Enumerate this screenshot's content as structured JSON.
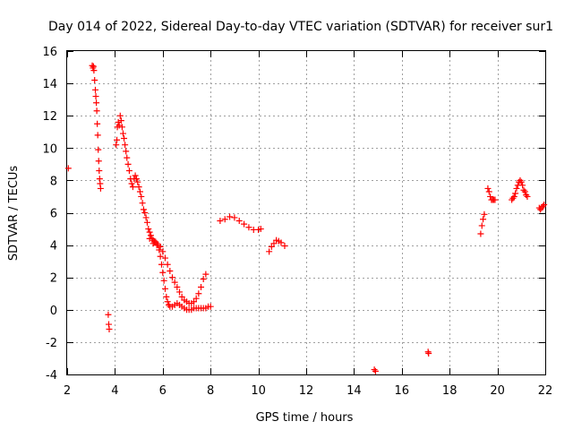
{
  "chart_data": {
    "type": "scatter",
    "title": "Day 014 of 2022, Sidereal Day-to-day VTEC variation (SDTVAR) for receiver sur1",
    "xlabel": "GPS time / hours",
    "ylabel": "SDTVAR / TECUs",
    "xlim": [
      2,
      22
    ],
    "ylim": [
      -4,
      16
    ],
    "xticks": [
      2,
      4,
      6,
      8,
      10,
      12,
      14,
      16,
      18,
      20,
      22
    ],
    "yticks": [
      -4,
      -2,
      0,
      2,
      4,
      6,
      8,
      10,
      12,
      14,
      16
    ],
    "grid": true,
    "marker": "+",
    "colors": {
      "series": "#ff0000",
      "grid": "#a0a0a0",
      "frame": "#000000"
    },
    "series": [
      {
        "name": "SDTVAR",
        "points": [
          [
            2.05,
            8.75
          ],
          [
            3.05,
            15.1
          ],
          [
            3.08,
            14.95
          ],
          [
            3.1,
            15.05
          ],
          [
            3.12,
            14.8
          ],
          [
            3.15,
            14.2
          ],
          [
            3.18,
            13.6
          ],
          [
            3.2,
            13.2
          ],
          [
            3.22,
            12.8
          ],
          [
            3.24,
            12.3
          ],
          [
            3.26,
            11.5
          ],
          [
            3.28,
            10.8
          ],
          [
            3.3,
            9.9
          ],
          [
            3.32,
            9.2
          ],
          [
            3.34,
            8.6
          ],
          [
            3.36,
            8.1
          ],
          [
            3.38,
            7.8
          ],
          [
            3.4,
            7.5
          ],
          [
            3.72,
            -0.3
          ],
          [
            3.74,
            -0.9
          ],
          [
            3.76,
            -1.2
          ],
          [
            4.05,
            10.2
          ],
          [
            4.08,
            10.5
          ],
          [
            4.1,
            11.3
          ],
          [
            4.14,
            11.6
          ],
          [
            4.18,
            11.4
          ],
          [
            4.22,
            12.0
          ],
          [
            4.26,
            11.7
          ],
          [
            4.3,
            11.3
          ],
          [
            4.34,
            10.9
          ],
          [
            4.38,
            10.6
          ],
          [
            4.42,
            10.2
          ],
          [
            4.46,
            9.8
          ],
          [
            4.5,
            9.4
          ],
          [
            4.55,
            9.0
          ],
          [
            4.6,
            8.6
          ],
          [
            4.65,
            8.1
          ],
          [
            4.7,
            7.8
          ],
          [
            4.75,
            7.6
          ],
          [
            4.8,
            8.1
          ],
          [
            4.85,
            8.3
          ],
          [
            4.9,
            8.1
          ],
          [
            4.95,
            7.9
          ],
          [
            5.0,
            7.6
          ],
          [
            5.05,
            7.3
          ],
          [
            5.1,
            7.0
          ],
          [
            5.15,
            6.6
          ],
          [
            5.2,
            6.2
          ],
          [
            5.25,
            6.0
          ],
          [
            5.3,
            5.7
          ],
          [
            5.35,
            5.4
          ],
          [
            5.4,
            5.0
          ],
          [
            5.45,
            4.8
          ],
          [
            5.5,
            4.6
          ],
          [
            5.55,
            4.4
          ],
          [
            5.6,
            4.3
          ],
          [
            5.65,
            4.2
          ],
          [
            5.7,
            4.2
          ],
          [
            5.75,
            4.1
          ],
          [
            5.8,
            4.0
          ],
          [
            5.85,
            3.7
          ],
          [
            5.9,
            3.3
          ],
          [
            5.95,
            2.8
          ],
          [
            6.0,
            2.3
          ],
          [
            6.05,
            1.8
          ],
          [
            6.1,
            1.3
          ],
          [
            6.15,
            0.8
          ],
          [
            6.2,
            0.5
          ],
          [
            6.25,
            0.3
          ],
          [
            6.3,
            0.2
          ],
          [
            6.4,
            0.2
          ],
          [
            6.5,
            0.3
          ],
          [
            6.6,
            0.4
          ],
          [
            6.7,
            0.3
          ],
          [
            6.8,
            0.2
          ],
          [
            6.9,
            0.1
          ],
          [
            7.0,
            0.0
          ],
          [
            7.1,
            0.0
          ],
          [
            7.2,
            0.0
          ],
          [
            7.3,
            0.1
          ],
          [
            7.4,
            0.1
          ],
          [
            7.5,
            0.1
          ],
          [
            7.6,
            0.1
          ],
          [
            7.7,
            0.1
          ],
          [
            7.8,
            0.1
          ],
          [
            7.9,
            0.2
          ],
          [
            8.0,
            0.2
          ],
          [
            5.45,
            4.4
          ],
          [
            5.6,
            4.1
          ],
          [
            5.75,
            4.0
          ],
          [
            5.9,
            3.9
          ],
          [
            6.0,
            3.6
          ],
          [
            6.1,
            3.2
          ],
          [
            6.2,
            2.8
          ],
          [
            6.3,
            2.4
          ],
          [
            6.4,
            2.0
          ],
          [
            6.5,
            1.7
          ],
          [
            6.6,
            1.4
          ],
          [
            6.7,
            1.1
          ],
          [
            6.8,
            0.8
          ],
          [
            6.9,
            0.6
          ],
          [
            7.0,
            0.5
          ],
          [
            7.1,
            0.4
          ],
          [
            7.2,
            0.4
          ],
          [
            7.3,
            0.5
          ],
          [
            7.4,
            0.7
          ],
          [
            7.5,
            1.0
          ],
          [
            7.6,
            1.4
          ],
          [
            7.7,
            1.9
          ],
          [
            7.8,
            2.2
          ],
          [
            8.4,
            5.5
          ],
          [
            8.6,
            5.6
          ],
          [
            8.8,
            5.75
          ],
          [
            9.0,
            5.7
          ],
          [
            9.2,
            5.5
          ],
          [
            9.4,
            5.3
          ],
          [
            9.6,
            5.1
          ],
          [
            9.8,
            4.95
          ],
          [
            10.0,
            4.95
          ],
          [
            10.1,
            5.0
          ],
          [
            10.45,
            3.6
          ],
          [
            10.55,
            3.9
          ],
          [
            10.65,
            4.1
          ],
          [
            10.75,
            4.3
          ],
          [
            10.85,
            4.25
          ],
          [
            10.95,
            4.15
          ],
          [
            11.1,
            3.95
          ],
          [
            14.85,
            -3.7
          ],
          [
            14.9,
            -3.8
          ],
          [
            17.1,
            -2.6
          ],
          [
            17.12,
            -2.7
          ],
          [
            19.3,
            4.7
          ],
          [
            19.35,
            5.2
          ],
          [
            19.4,
            5.6
          ],
          [
            19.45,
            5.9
          ],
          [
            19.6,
            7.5
          ],
          [
            19.65,
            7.3
          ],
          [
            19.7,
            7.0
          ],
          [
            19.75,
            6.8
          ],
          [
            19.8,
            6.8
          ],
          [
            19.85,
            6.8
          ],
          [
            19.9,
            6.8
          ],
          [
            20.6,
            6.8
          ],
          [
            20.65,
            6.9
          ],
          [
            20.7,
            7.0
          ],
          [
            20.75,
            7.2
          ],
          [
            20.8,
            7.5
          ],
          [
            20.85,
            7.7
          ],
          [
            20.9,
            7.9
          ],
          [
            20.95,
            8.0
          ],
          [
            21.0,
            7.9
          ],
          [
            21.05,
            7.7
          ],
          [
            21.1,
            7.4
          ],
          [
            21.15,
            7.3
          ],
          [
            21.2,
            7.1
          ],
          [
            21.25,
            7.0
          ],
          [
            21.75,
            6.3
          ],
          [
            21.8,
            6.2
          ],
          [
            21.85,
            6.3
          ],
          [
            21.9,
            6.4
          ],
          [
            21.95,
            6.5
          ]
        ]
      }
    ]
  }
}
